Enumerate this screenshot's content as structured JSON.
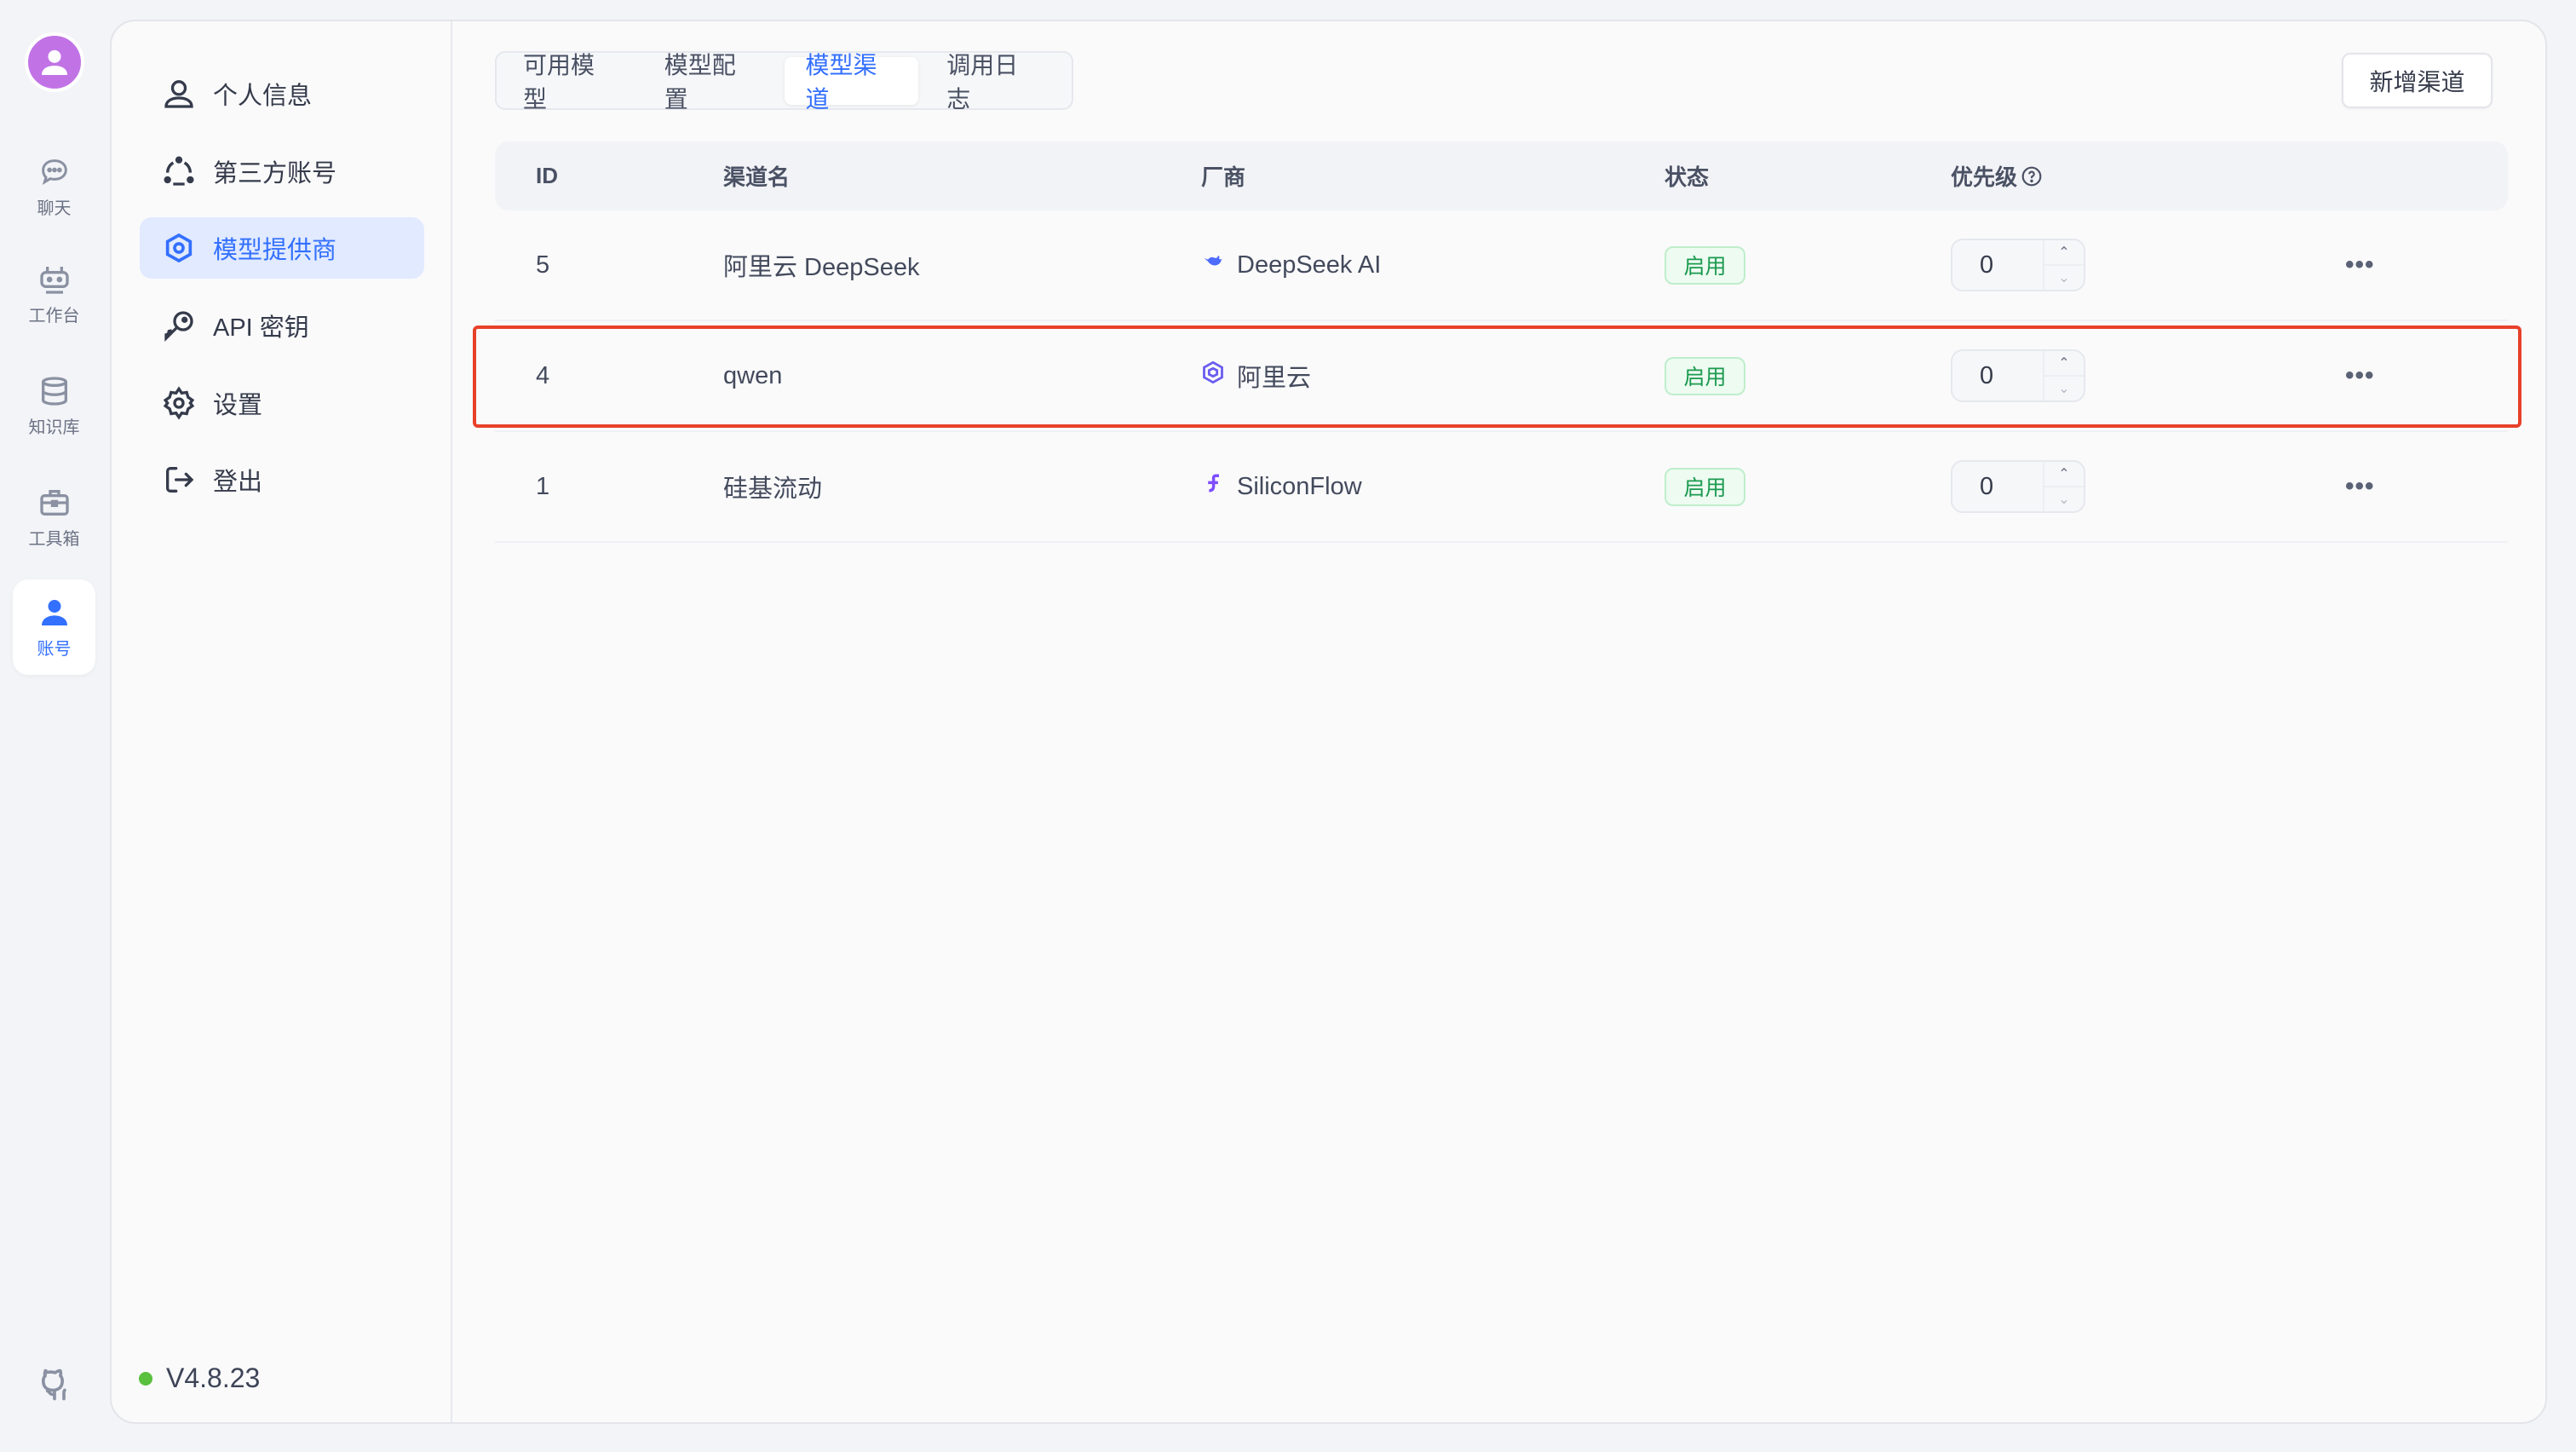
{
  "rail": {
    "items": [
      {
        "label": "聊天",
        "icon": "chat-icon"
      },
      {
        "label": "工作台",
        "icon": "robot-icon"
      },
      {
        "label": "知识库",
        "icon": "database-icon"
      },
      {
        "label": "工具箱",
        "icon": "toolbox-icon"
      },
      {
        "label": "账号",
        "icon": "user-icon",
        "active": true
      }
    ]
  },
  "subnav": {
    "items": [
      {
        "label": "个人信息",
        "icon": "user-icon"
      },
      {
        "label": "第三方账号",
        "icon": "share-icon"
      },
      {
        "label": "模型提供商",
        "icon": "model-icon",
        "active": true
      },
      {
        "label": "API 密钥",
        "icon": "key-icon"
      },
      {
        "label": "设置",
        "icon": "gear-icon"
      },
      {
        "label": "登出",
        "icon": "logout-icon"
      }
    ],
    "version": "V4.8.23",
    "version_status_color": "#5ac03d"
  },
  "tabs": [
    {
      "label": "可用模型"
    },
    {
      "label": "模型配置"
    },
    {
      "label": "模型渠道",
      "active": true
    },
    {
      "label": "调用日志"
    }
  ],
  "add_button": "新增渠道",
  "table": {
    "headers": {
      "id": "ID",
      "name": "渠道名",
      "vendor": "厂商",
      "status": "状态",
      "priority": "优先级"
    },
    "rows": [
      {
        "id": "5",
        "name": "阿里云 DeepSeek",
        "vendor": "DeepSeek AI",
        "vendor_icon": "deepseek-icon",
        "status": "启用",
        "priority": "0"
      },
      {
        "id": "4",
        "name": "qwen",
        "vendor": "阿里云",
        "vendor_icon": "qwen-icon",
        "status": "启用",
        "priority": "0",
        "highlighted": true
      },
      {
        "id": "1",
        "name": "硅基流动",
        "vendor": "SiliconFlow",
        "vendor_icon": "siliconflow-icon",
        "status": "启用",
        "priority": "0"
      }
    ]
  },
  "colors": {
    "accent": "#3370ff",
    "highlight": "#e8412a",
    "status_green": "#1c9a4f"
  }
}
